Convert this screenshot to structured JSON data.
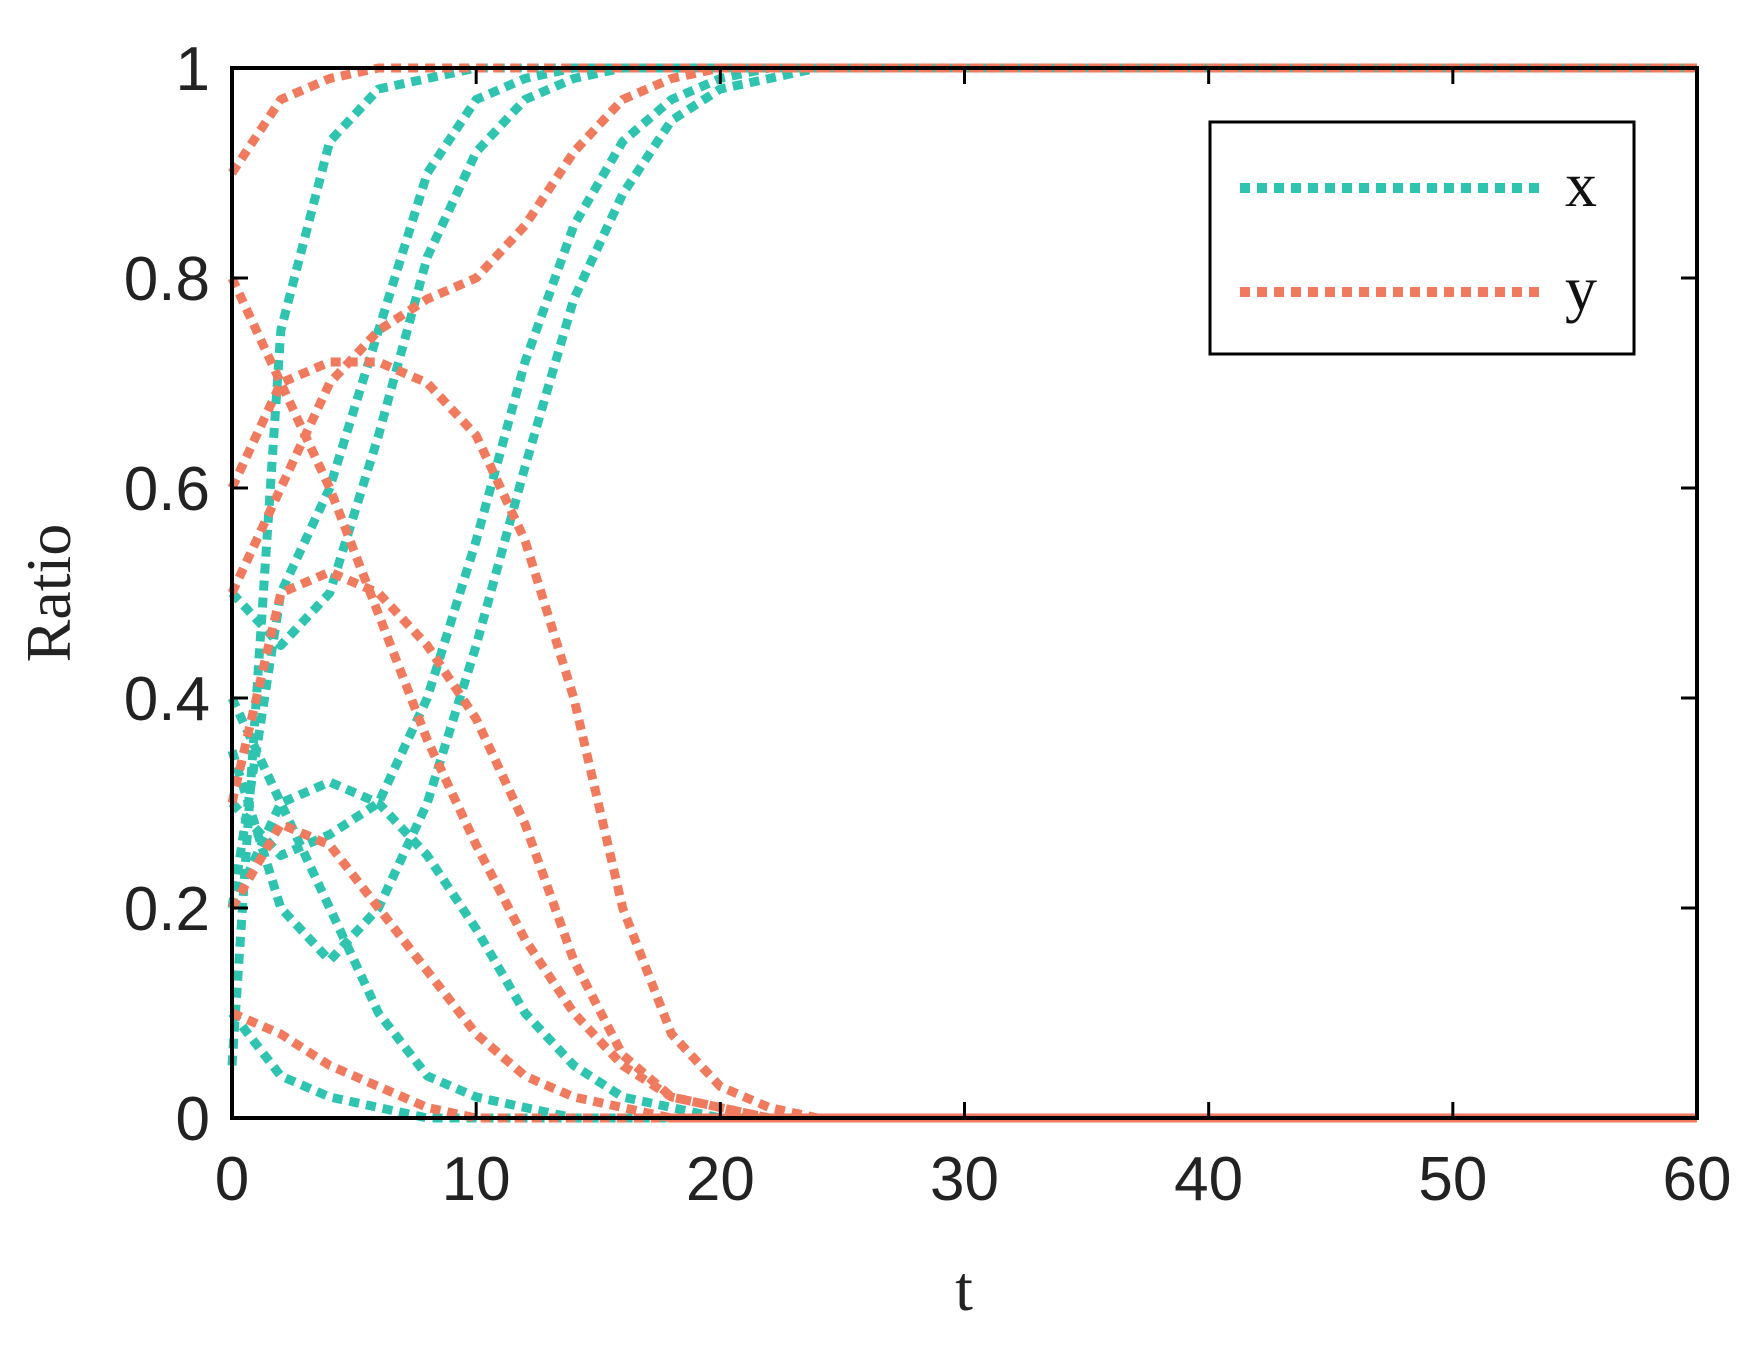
{
  "chart_data": {
    "type": "line",
    "title": "",
    "xlabel": "t",
    "ylabel": "Ratio",
    "xlim": [
      0,
      60
    ],
    "ylim": [
      0,
      1
    ],
    "xticks": [
      "0",
      "10",
      "20",
      "30",
      "40",
      "50",
      "60"
    ],
    "yticks": [
      "0",
      "0.2",
      "0.4",
      "0.6",
      "0.8",
      "1"
    ],
    "grid": false,
    "legend_position": "top-right",
    "line_style": "dotted",
    "colors": {
      "x": "#2ec4b0",
      "y": "#f07a5e"
    },
    "x": [
      0,
      2,
      4,
      6,
      8,
      10,
      12,
      14,
      16,
      18,
      20,
      22,
      24,
      26,
      28,
      30,
      35,
      40,
      50,
      60
    ],
    "series": [
      {
        "name": "x",
        "values": [
          0.05,
          0.75,
          0.93,
          0.98,
          0.99,
          1.0,
          1.0,
          1.0,
          1.0,
          1.0,
          1.0,
          1.0,
          1.0,
          1.0,
          1.0,
          1.0,
          1.0,
          1.0,
          1.0,
          1.0
        ]
      },
      {
        "name": "",
        "values": [
          0.2,
          0.5,
          0.6,
          0.75,
          0.9,
          0.97,
          0.99,
          1.0,
          1.0,
          1.0,
          1.0,
          1.0,
          1.0,
          1.0,
          1.0,
          1.0,
          1.0,
          1.0,
          1.0,
          1.0
        ]
      },
      {
        "name": "",
        "values": [
          0.5,
          0.45,
          0.5,
          0.65,
          0.82,
          0.92,
          0.97,
          0.99,
          1.0,
          1.0,
          1.0,
          1.0,
          1.0,
          1.0,
          1.0,
          1.0,
          1.0,
          1.0,
          1.0,
          1.0
        ]
      },
      {
        "name": "",
        "values": [
          0.3,
          0.25,
          0.27,
          0.3,
          0.4,
          0.55,
          0.72,
          0.85,
          0.93,
          0.97,
          0.99,
          1.0,
          1.0,
          1.0,
          1.0,
          1.0,
          1.0,
          1.0,
          1.0,
          1.0
        ]
      },
      {
        "name": "",
        "values": [
          0.35,
          0.2,
          0.15,
          0.2,
          0.3,
          0.45,
          0.62,
          0.78,
          0.88,
          0.95,
          0.98,
          0.99,
          1.0,
          1.0,
          1.0,
          1.0,
          1.0,
          1.0,
          1.0,
          1.0
        ]
      },
      {
        "name": "",
        "values": [
          0.1,
          0.04,
          0.02,
          0.01,
          0.0,
          0.0,
          0.0,
          0.0,
          0.0,
          0.0,
          0.0,
          0.0,
          0.0,
          0.0,
          0.0,
          0.0,
          0.0,
          0.0,
          0.0,
          0.0
        ]
      },
      {
        "name": "",
        "values": [
          0.2,
          0.3,
          0.32,
          0.3,
          0.25,
          0.18,
          0.1,
          0.05,
          0.02,
          0.01,
          0.0,
          0.0,
          0.0,
          0.0,
          0.0,
          0.0,
          0.0,
          0.0,
          0.0,
          0.0
        ]
      },
      {
        "name": "",
        "values": [
          0.4,
          0.3,
          0.2,
          0.1,
          0.04,
          0.02,
          0.01,
          0.0,
          0.0,
          0.0,
          0.0,
          0.0,
          0.0,
          0.0,
          0.0,
          0.0,
          0.0,
          0.0,
          0.0,
          0.0
        ]
      },
      {
        "name": "y",
        "values": [
          0.9,
          0.97,
          0.99,
          1.0,
          1.0,
          1.0,
          1.0,
          1.0,
          1.0,
          1.0,
          1.0,
          1.0,
          1.0,
          1.0,
          1.0,
          1.0,
          1.0,
          1.0,
          1.0,
          1.0
        ]
      },
      {
        "name": "",
        "values": [
          0.5,
          0.6,
          0.7,
          0.75,
          0.78,
          0.8,
          0.85,
          0.92,
          0.97,
          0.99,
          1.0,
          1.0,
          1.0,
          1.0,
          1.0,
          1.0,
          1.0,
          1.0,
          1.0,
          1.0
        ]
      },
      {
        "name": "",
        "values": [
          0.6,
          0.7,
          0.72,
          0.72,
          0.7,
          0.65,
          0.55,
          0.4,
          0.2,
          0.08,
          0.03,
          0.01,
          0.0,
          0.0,
          0.0,
          0.0,
          0.0,
          0.0,
          0.0,
          0.0
        ]
      },
      {
        "name": "",
        "values": [
          0.3,
          0.5,
          0.52,
          0.5,
          0.45,
          0.38,
          0.28,
          0.15,
          0.06,
          0.02,
          0.01,
          0.0,
          0.0,
          0.0,
          0.0,
          0.0,
          0.0,
          0.0,
          0.0,
          0.0
        ]
      },
      {
        "name": "",
        "values": [
          0.2,
          0.28,
          0.26,
          0.2,
          0.14,
          0.08,
          0.04,
          0.02,
          0.01,
          0.0,
          0.0,
          0.0,
          0.0,
          0.0,
          0.0,
          0.0,
          0.0,
          0.0,
          0.0,
          0.0
        ]
      },
      {
        "name": "",
        "values": [
          0.1,
          0.08,
          0.05,
          0.03,
          0.01,
          0.0,
          0.0,
          0.0,
          0.0,
          0.0,
          0.0,
          0.0,
          0.0,
          0.0,
          0.0,
          0.0,
          0.0,
          0.0,
          0.0,
          0.0
        ]
      },
      {
        "name": "",
        "values": [
          0.8,
          0.7,
          0.6,
          0.48,
          0.36,
          0.26,
          0.17,
          0.1,
          0.05,
          0.02,
          0.01,
          0.0,
          0.0,
          0.0,
          0.0,
          0.0,
          0.0,
          0.0,
          0.0,
          0.0
        ]
      }
    ]
  }
}
